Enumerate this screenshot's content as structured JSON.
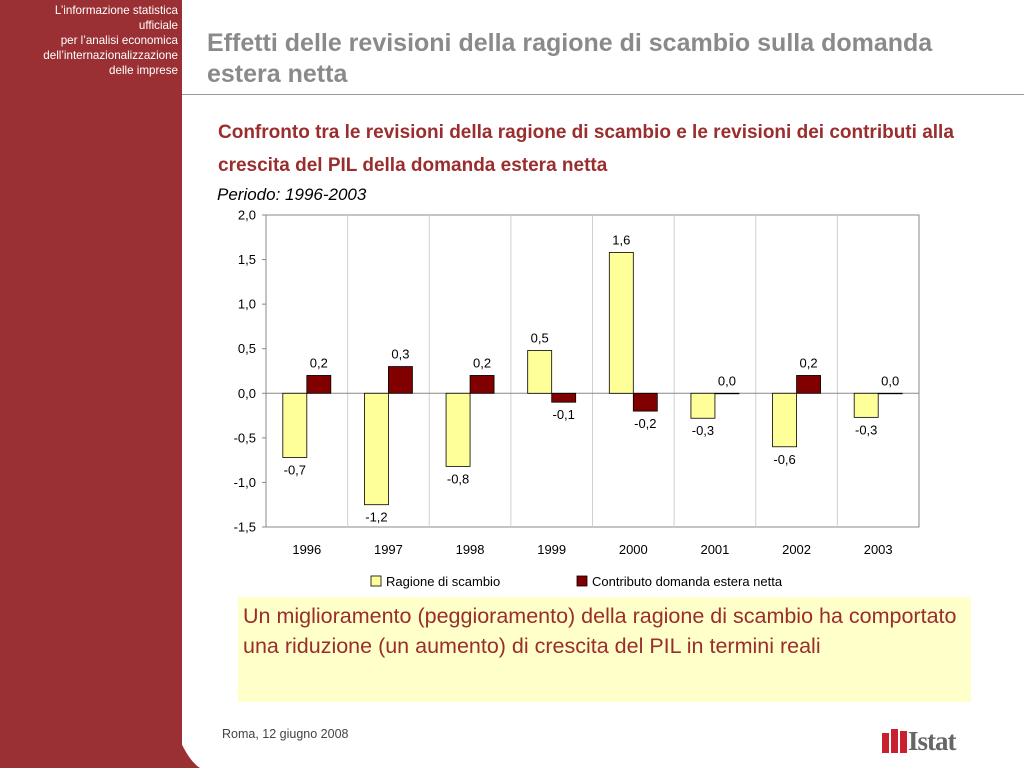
{
  "sidebar": {
    "lines": [
      "L’informazione statistica",
      "ufficiale",
      "per l’analisi economica",
      "dell’internazionalizzazione",
      "delle imprese"
    ],
    "color": "#9a3034"
  },
  "header": {
    "title": "Effetti delle revisioni della ragione di scambio sulla domanda estera netta"
  },
  "chart_section": {
    "subtitle": "Confronto tra le revisioni della ragione di scambio e le revisioni dei contributi alla crescita del PIL della domanda estera netta",
    "period": "Periodo: 1996-2003"
  },
  "chart_data": {
    "type": "bar",
    "categories": [
      "1996",
      "1997",
      "1998",
      "1999",
      "2000",
      "2001",
      "2002",
      "2003"
    ],
    "series": [
      {
        "name": "Ragione di scambio",
        "values": [
          -0.72,
          -1.25,
          -0.82,
          0.48,
          1.58,
          -0.28,
          -0.6,
          -0.27
        ],
        "labels": [
          "-0,7",
          "-1,2",
          "-0,8",
          "0,5",
          "1,6",
          "-0,3",
          "-0,6",
          "-0,3"
        ],
        "color": "#ffff99"
      },
      {
        "name": "Contributo domanda estera netta",
        "values": [
          0.2,
          0.3,
          0.2,
          -0.1,
          -0.2,
          0.0,
          0.2,
          0.0
        ],
        "labels": [
          "0,2",
          "0,3",
          "0,2",
          "-0,1",
          "-0,2",
          "0,0",
          "0,2",
          "0,0"
        ],
        "color": "#800000"
      }
    ],
    "yticks": [
      2.0,
      1.5,
      1.0,
      0.5,
      0.0,
      -0.5,
      -1.0,
      -1.5
    ],
    "ytick_labels": [
      "2,0",
      "1,5",
      "1,0",
      "0,5",
      "0,0",
      "-0,5",
      "-1,0",
      "-1,5"
    ],
    "ylim": [
      -1.5,
      2.0
    ],
    "grid": true,
    "legend": "bottom",
    "title": "",
    "xlabel": "",
    "ylabel": ""
  },
  "note": {
    "text": "Un miglioramento (peggioramento) della ragione di scambio ha comportato una riduzione (un aumento) di crescita del PIL in termini reali"
  },
  "footer": {
    "date": "Roma, 12 giugno 2008",
    "logo_text": "Istat",
    "logo_color": "#c8202f"
  }
}
